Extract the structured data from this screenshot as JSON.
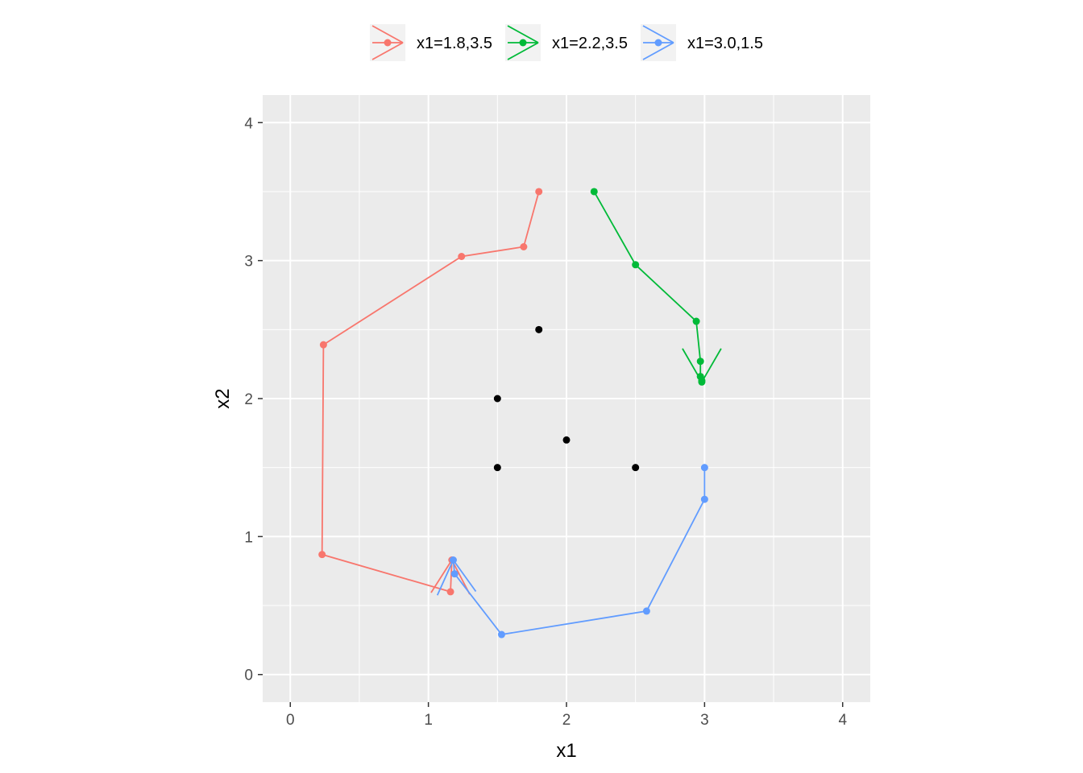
{
  "chart_data": {
    "type": "line",
    "xlabel": "x1",
    "ylabel": "x2",
    "xlim": [
      -0.2,
      4.2
    ],
    "ylim": [
      -0.2,
      4.2
    ],
    "x_ticks": [
      0,
      1,
      2,
      3,
      4
    ],
    "y_ticks": [
      0,
      1,
      2,
      3,
      4
    ],
    "grid": true,
    "legend_position": "top",
    "background": "#ebebeb",
    "static_points": [
      {
        "x": 1.8,
        "y": 2.5
      },
      {
        "x": 1.5,
        "y": 2.0
      },
      {
        "x": 2.0,
        "y": 1.7
      },
      {
        "x": 1.5,
        "y": 1.5
      },
      {
        "x": 2.5,
        "y": 1.5
      }
    ],
    "series": [
      {
        "name": "x1=1.8,3.5",
        "color": "#F8766D",
        "points": [
          {
            "x": 1.8,
            "y": 3.5
          },
          {
            "x": 1.69,
            "y": 3.1
          },
          {
            "x": 1.24,
            "y": 3.03
          },
          {
            "x": 0.24,
            "y": 2.39
          },
          {
            "x": 0.23,
            "y": 0.87
          },
          {
            "x": 1.16,
            "y": 0.6
          },
          {
            "x": 1.17,
            "y": 0.83
          }
        ]
      },
      {
        "name": "x1=2.2,3.5",
        "color": "#00BA38",
        "points": [
          {
            "x": 2.2,
            "y": 3.5
          },
          {
            "x": 2.5,
            "y": 2.97
          },
          {
            "x": 2.94,
            "y": 2.56
          },
          {
            "x": 2.97,
            "y": 2.27
          },
          {
            "x": 2.97,
            "y": 2.16
          },
          {
            "x": 2.98,
            "y": 2.13
          },
          {
            "x": 2.98,
            "y": 2.12
          }
        ]
      },
      {
        "name": "x1=3.0,1.5",
        "color": "#619CFF",
        "points": [
          {
            "x": 3.0,
            "y": 1.5
          },
          {
            "x": 3.0,
            "y": 1.27
          },
          {
            "x": 2.58,
            "y": 0.46
          },
          {
            "x": 1.53,
            "y": 0.29
          },
          {
            "x": 1.19,
            "y": 0.73
          },
          {
            "x": 1.18,
            "y": 0.83
          }
        ]
      }
    ]
  }
}
